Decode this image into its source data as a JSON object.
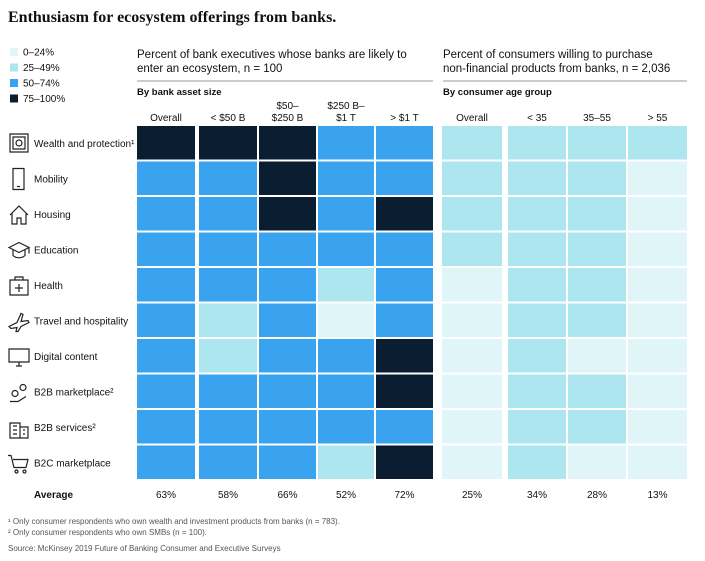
{
  "chart_data": {
    "type": "heatmap",
    "title": "Enthusiasm for ecosystem offerings from banks.",
    "legend": [
      {
        "label": "0–24%",
        "color": "#e0f5f8"
      },
      {
        "label": "25–49%",
        "color": "#aee6ef"
      },
      {
        "label": "50–74%",
        "color": "#3aa3f0"
      },
      {
        "label": "75–100%",
        "color": "#0b1d30"
      }
    ],
    "rows": [
      "Wealth and protection¹",
      "Mobility",
      "Housing",
      "Education",
      "Health",
      "Travel and hospitality",
      "Digital content",
      "B2B marketplace²",
      "B2B services²",
      "B2C marketplace"
    ],
    "average_label": "Average",
    "panels": [
      {
        "heading": "Percent of bank executives whose banks are likely to\nenter an ecosystem, n = 100",
        "subheading": "By bank asset size",
        "columns": [
          "Overall",
          "< $50 B",
          "$50–\n$250 B",
          "$250 B–\n$1 T",
          "> $1 T"
        ],
        "cells": [
          [
            "75–100%",
            "75–100%",
            "75–100%",
            "50–74%",
            "50–74%"
          ],
          [
            "50–74%",
            "50–74%",
            "75–100%",
            "50–74%",
            "50–74%"
          ],
          [
            "50–74%",
            "50–74%",
            "75–100%",
            "50–74%",
            "75–100%"
          ],
          [
            "50–74%",
            "50–74%",
            "50–74%",
            "50–74%",
            "50–74%"
          ],
          [
            "50–74%",
            "50–74%",
            "50–74%",
            "25–49%",
            "50–74%"
          ],
          [
            "50–74%",
            "25–49%",
            "50–74%",
            "0–24%",
            "50–74%"
          ],
          [
            "50–74%",
            "25–49%",
            "50–74%",
            "50–74%",
            "75–100%"
          ],
          [
            "50–74%",
            "50–74%",
            "50–74%",
            "50–74%",
            "75–100%"
          ],
          [
            "50–74%",
            "50–74%",
            "50–74%",
            "50–74%",
            "50–74%"
          ],
          [
            "50–74%",
            "50–74%",
            "50–74%",
            "25–49%",
            "75–100%"
          ]
        ],
        "averages": [
          63,
          58,
          66,
          52,
          72
        ],
        "average_labels": [
          "63%",
          "58%",
          "66%",
          "52%",
          "72%"
        ]
      },
      {
        "heading": "Percent of consumers willing to purchase\nnon-financial products from banks, n = 2,036",
        "subheading": "By consumer age group",
        "columns": [
          "Overall",
          "< 35",
          "35–55",
          "> 55"
        ],
        "cells": [
          [
            "25–49%",
            "25–49%",
            "25–49%",
            "25–49%"
          ],
          [
            "25–49%",
            "25–49%",
            "25–49%",
            "0–24%"
          ],
          [
            "25–49%",
            "25–49%",
            "25–49%",
            "0–24%"
          ],
          [
            "25–49%",
            "25–49%",
            "25–49%",
            "0–24%"
          ],
          [
            "0–24%",
            "25–49%",
            "25–49%",
            "0–24%"
          ],
          [
            "0–24%",
            "25–49%",
            "25–49%",
            "0–24%"
          ],
          [
            "0–24%",
            "25–49%",
            "0–24%",
            "0–24%"
          ],
          [
            "0–24%",
            "25–49%",
            "25–49%",
            "0–24%"
          ],
          [
            "0–24%",
            "25–49%",
            "25–49%",
            "0–24%"
          ],
          [
            "0–24%",
            "25–49%",
            "0–24%",
            "0–24%"
          ]
        ],
        "averages": [
          25,
          34,
          28,
          13
        ],
        "average_labels": [
          "25%",
          "34%",
          "28%",
          "13%"
        ]
      }
    ],
    "footnotes": [
      "¹ Only consumer respondents who own wealth and investment products from banks (n = 783).",
      "² Only consumer respondents who own SMBs (n = 100)."
    ],
    "source": "Source: McKinsey 2019 Future of Banking Consumer and Executive Surveys"
  }
}
